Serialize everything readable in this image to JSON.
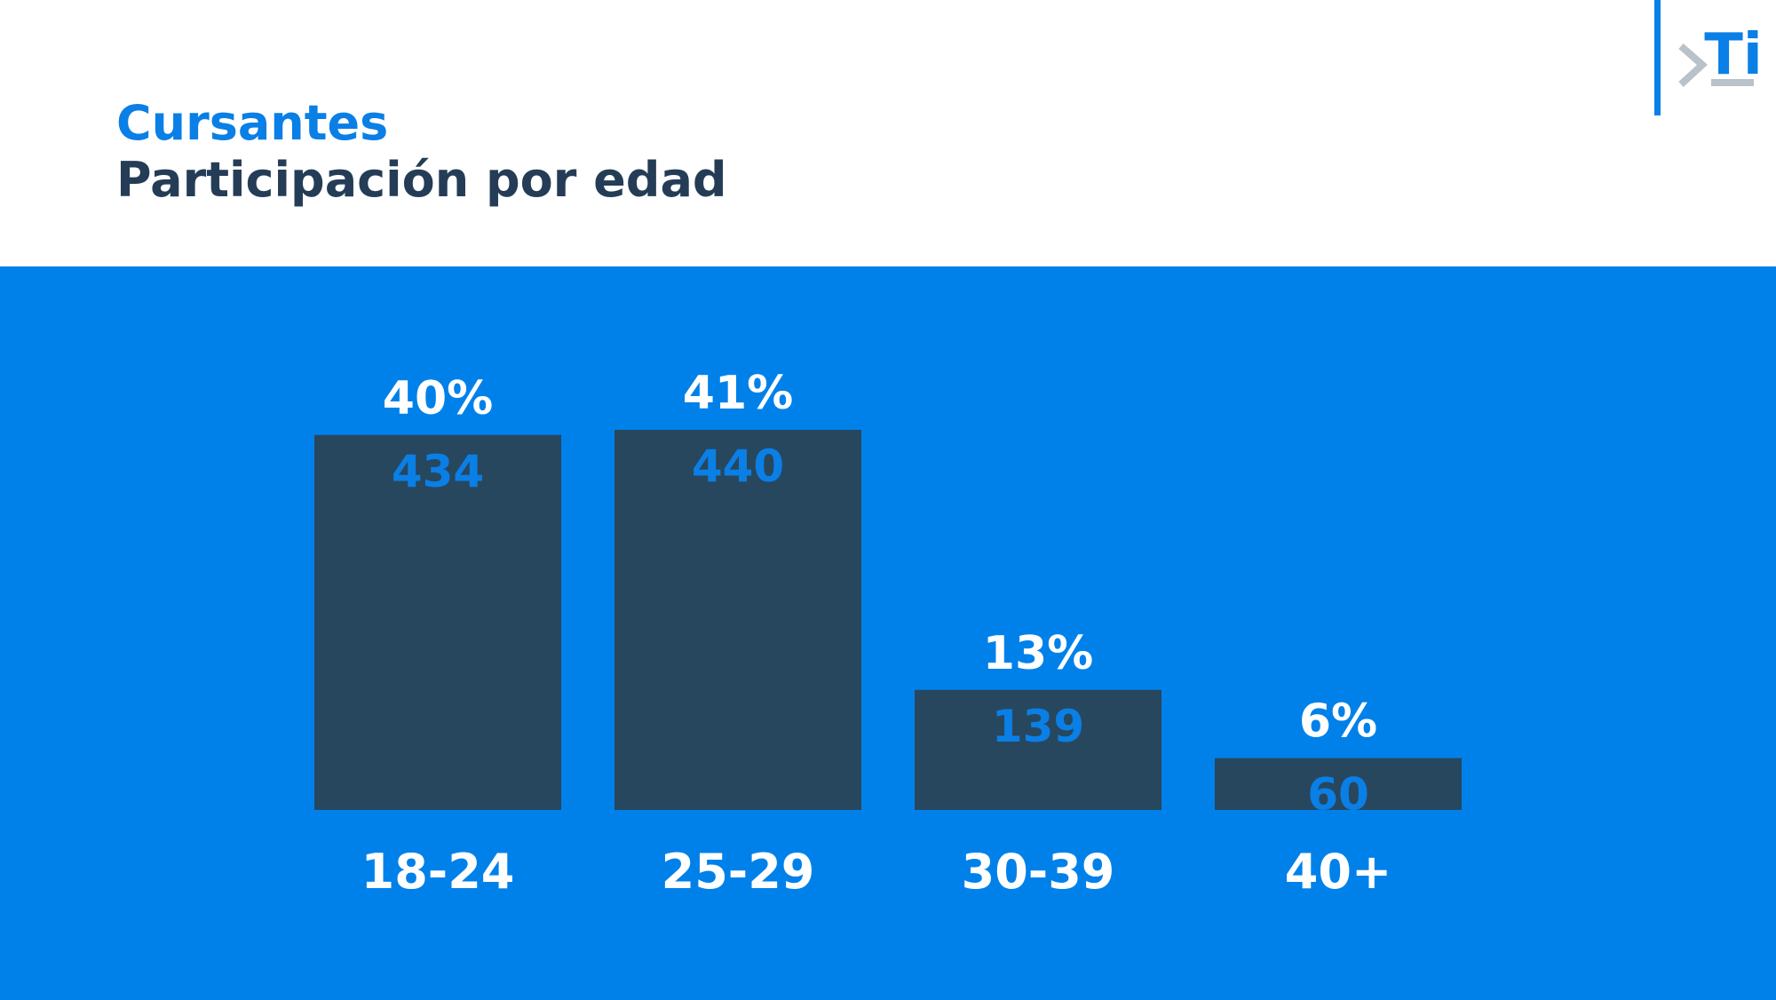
{
  "header": {
    "title": "Cursantes",
    "subtitle": "Participación por edad",
    "logo_text": "Ti"
  },
  "colors": {
    "title": "#0a7fe6",
    "subtitle": "#253c56",
    "panel": "#0081ea",
    "bar": "#27475f",
    "count_label": "#0a7fe6",
    "logo_line": "#0a7fe6",
    "logo_chevron": "#b9c1c9"
  },
  "chart_data": {
    "type": "bar",
    "title": "",
    "xlabel": "",
    "ylabel": "",
    "categories": [
      "18-24",
      "25-29",
      "30-39",
      "40+"
    ],
    "values": [
      434,
      440,
      139,
      60
    ],
    "percent_labels": [
      "40%",
      "41%",
      "13%",
      "6%"
    ],
    "count_labels": [
      "434",
      "440",
      "139",
      "60"
    ],
    "ylim": [
      0,
      440
    ],
    "grid": false,
    "legend": "none"
  }
}
